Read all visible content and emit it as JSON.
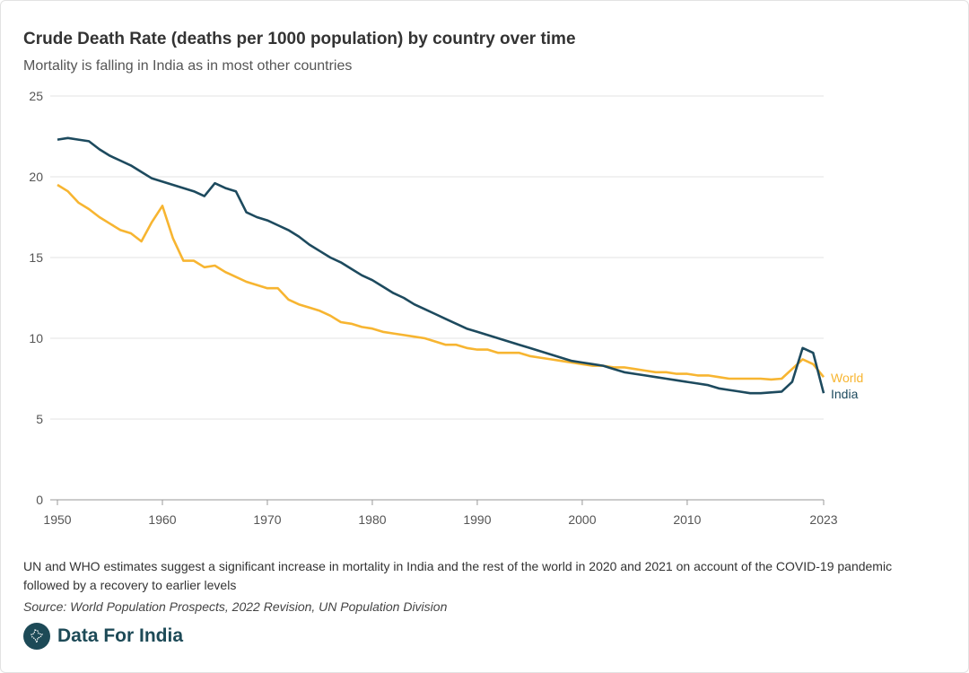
{
  "chart_data": {
    "type": "line",
    "title": "Crude Death Rate (deaths per 1000 population) by country over time",
    "subtitle": "Mortality is falling in India as in most other countries",
    "xlabel": "",
    "ylabel": "",
    "xlim": [
      1950,
      2023
    ],
    "ylim": [
      0,
      25
    ],
    "x_ticks": [
      "1950",
      "1960",
      "1970",
      "1980",
      "1990",
      "2000",
      "2010",
      "2023"
    ],
    "y_ticks": [
      "0",
      "5",
      "10",
      "15",
      "20",
      "25"
    ],
    "grid": true,
    "legend": "inline-right",
    "x": [
      1950,
      1951,
      1952,
      1953,
      1954,
      1955,
      1956,
      1957,
      1958,
      1959,
      1960,
      1961,
      1962,
      1963,
      1964,
      1965,
      1966,
      1967,
      1968,
      1969,
      1970,
      1971,
      1972,
      1973,
      1974,
      1975,
      1976,
      1977,
      1978,
      1979,
      1980,
      1981,
      1982,
      1983,
      1984,
      1985,
      1986,
      1987,
      1988,
      1989,
      1990,
      1991,
      1992,
      1993,
      1994,
      1995,
      1996,
      1997,
      1998,
      1999,
      2000,
      2001,
      2002,
      2003,
      2004,
      2005,
      2006,
      2007,
      2008,
      2009,
      2010,
      2011,
      2012,
      2013,
      2014,
      2015,
      2016,
      2017,
      2018,
      2019,
      2020,
      2021,
      2022,
      2023
    ],
    "series": [
      {
        "name": "India",
        "color": "#1d4a5e",
        "values": [
          22.3,
          22.4,
          22.3,
          22.2,
          21.7,
          21.3,
          21.0,
          20.7,
          20.3,
          19.9,
          19.7,
          19.5,
          19.3,
          19.1,
          18.8,
          19.6,
          19.3,
          19.1,
          17.8,
          17.5,
          17.3,
          17.0,
          16.7,
          16.3,
          15.8,
          15.4,
          15.0,
          14.7,
          14.3,
          13.9,
          13.6,
          13.2,
          12.8,
          12.5,
          12.1,
          11.8,
          11.5,
          11.2,
          10.9,
          10.6,
          10.4,
          10.2,
          10.0,
          9.8,
          9.6,
          9.4,
          9.2,
          9.0,
          8.8,
          8.6,
          8.5,
          8.4,
          8.3,
          8.1,
          7.9,
          7.8,
          7.7,
          7.6,
          7.5,
          7.4,
          7.3,
          7.2,
          7.1,
          6.9,
          6.8,
          6.7,
          6.6,
          6.6,
          6.65,
          6.7,
          7.3,
          9.4,
          9.1,
          6.6
        ]
      },
      {
        "name": "World",
        "color": "#f7b531",
        "values": [
          19.5,
          19.1,
          18.4,
          18.0,
          17.5,
          17.1,
          16.7,
          16.5,
          16.0,
          17.2,
          18.2,
          16.2,
          14.8,
          14.8,
          14.4,
          14.5,
          14.1,
          13.8,
          13.5,
          13.3,
          13.1,
          13.1,
          12.4,
          12.1,
          11.9,
          11.7,
          11.4,
          11.0,
          10.9,
          10.7,
          10.6,
          10.4,
          10.3,
          10.2,
          10.1,
          10.0,
          9.8,
          9.6,
          9.6,
          9.4,
          9.3,
          9.3,
          9.1,
          9.1,
          9.1,
          8.9,
          8.8,
          8.7,
          8.6,
          8.5,
          8.4,
          8.3,
          8.3,
          8.2,
          8.2,
          8.1,
          8.0,
          7.9,
          7.9,
          7.8,
          7.8,
          7.7,
          7.7,
          7.6,
          7.5,
          7.5,
          7.5,
          7.5,
          7.45,
          7.5,
          8.1,
          8.7,
          8.4,
          7.6
        ]
      }
    ]
  },
  "footer": {
    "note": "UN and WHO estimates suggest a significant increase in mortality in India and the rest of the world in 2020 and 2021 on account of the COVID-19 pandemic followed by a recovery to earlier levels",
    "source": "Source: World Population Prospects, 2022 Revision, UN Population Division",
    "brand": "Data For India"
  }
}
